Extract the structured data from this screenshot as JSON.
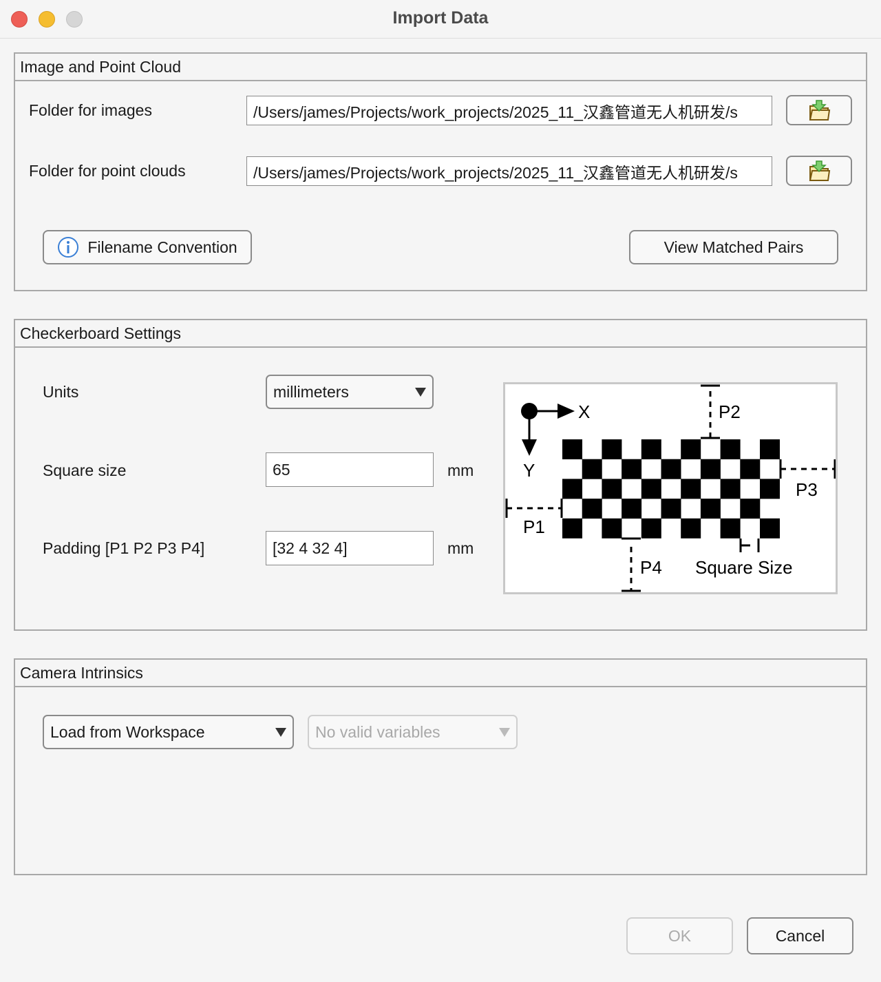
{
  "window": {
    "title": "Import Data"
  },
  "image_panel": {
    "title": "Image and Point Cloud",
    "images_label": "Folder for images",
    "images_value": "/Users/james/Projects/work_projects/2025_11_汉鑫管道无人机研发/s",
    "clouds_label": "Folder for point clouds",
    "clouds_value": "/Users/james/Projects/work_projects/2025_11_汉鑫管道无人机研发/s",
    "filename_convention": "Filename Convention",
    "view_pairs": "View Matched Pairs"
  },
  "checker_panel": {
    "title": "Checkerboard Settings",
    "units_label": "Units",
    "units_value": "millimeters",
    "square_label": "Square size",
    "square_value": "65",
    "square_unit": "mm",
    "padding_label": "Padding [P1 P2 P3 P4]",
    "padding_value": "[32 4 32 4]",
    "padding_unit": "mm",
    "diagram": {
      "x": "X",
      "y": "Y",
      "p1": "P1",
      "p2": "P2",
      "p3": "P3",
      "p4": "P4",
      "square_size": "Square Size",
      "rows": 5,
      "cols": 11
    }
  },
  "intrinsics_panel": {
    "title": "Camera Intrinsics",
    "source_value": "Load from Workspace",
    "variable_value": "No valid variables"
  },
  "footer": {
    "ok": "OK",
    "cancel": "Cancel"
  }
}
